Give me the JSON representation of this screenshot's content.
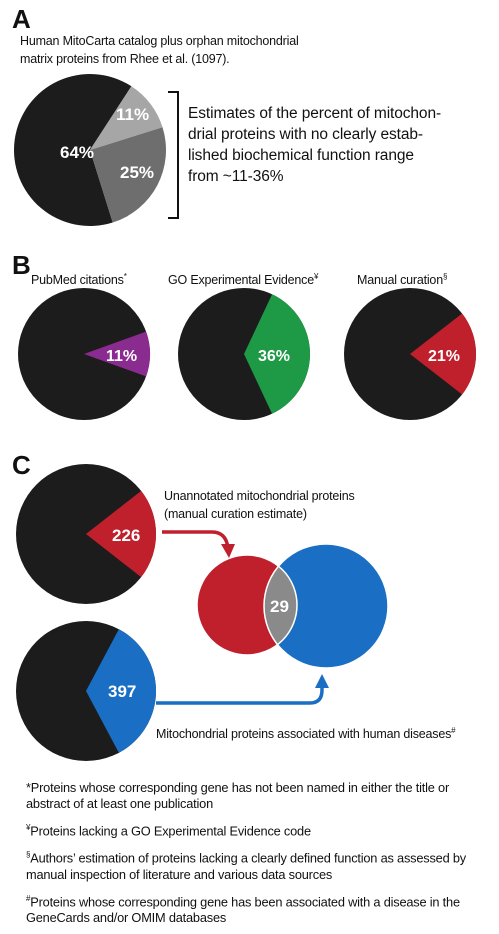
{
  "panelA": {
    "letter": "A",
    "caption_line1": "Human MitoCarta catalog plus orphan mitochondrial",
    "caption_line2": "matrix proteins from Rhee et al. (1097).",
    "pie": {
      "slices": [
        {
          "label": "64%",
          "value": 64,
          "color": "#1c1c1c"
        },
        {
          "label": "11%",
          "value": 11,
          "color": "#a6a6a6"
        },
        {
          "label": "25%",
          "value": 25,
          "color": "#6e6e6e"
        }
      ]
    },
    "note_lines": [
      "Estimates of the percent of mitochon-",
      "drial proteins with no clearly estab-",
      "lished biochemical function range",
      "from ~11-36%"
    ]
  },
  "panelB": {
    "letter": "B",
    "pies": [
      {
        "title": "PubMed citations",
        "mark": "*",
        "highlight_label": "11%",
        "highlight_value": 11,
        "highlight_color": "#8a2b8f",
        "base_color": "#1c1c1c"
      },
      {
        "title": "GO Experimental Evidence",
        "mark": "¥",
        "highlight_label": "36%",
        "highlight_value": 36,
        "highlight_color": "#1e9a46",
        "base_color": "#1c1c1c"
      },
      {
        "title": "Manual curation",
        "mark": "§",
        "highlight_label": "21%",
        "highlight_value": 21,
        "highlight_color": "#c0202c",
        "base_color": "#1c1c1c"
      }
    ]
  },
  "panelC": {
    "letter": "C",
    "pie_top": {
      "label": "226",
      "color": "#c0202c"
    },
    "pie_bottom": {
      "label": "397",
      "color": "#1a6fc4"
    },
    "label_top_line1": "Unannotated mitochondrial proteins",
    "label_top_line2": "(manual curation estimate)",
    "label_bottom": "Mitochondrial proteins associated with human diseases",
    "label_bottom_mark": "#",
    "venn_overlap": "29",
    "colors": {
      "red": "#c0202c",
      "blue": "#1a6fc4",
      "overlap": "#8a8a8a"
    }
  },
  "footnotes": [
    {
      "mark": "",
      "line1": "*Proteins whose corresponding gene has not been named in either the title or",
      "line2": "abstract of at least one publication"
    },
    {
      "mark": "¥",
      "line1": "Proteins lacking a GO Experimental Evidence code",
      "line2": ""
    },
    {
      "mark": "§",
      "line1": "Authors’ estimation of proteins lacking a clearly defined function as assessed by",
      "line2": "manual inspection of literature and various data sources"
    },
    {
      "mark": "#",
      "line1": "Proteins whose corresponding gene has been associated with a disease in the",
      "line2": "GeneCards and/or OMIM databases"
    }
  ]
}
